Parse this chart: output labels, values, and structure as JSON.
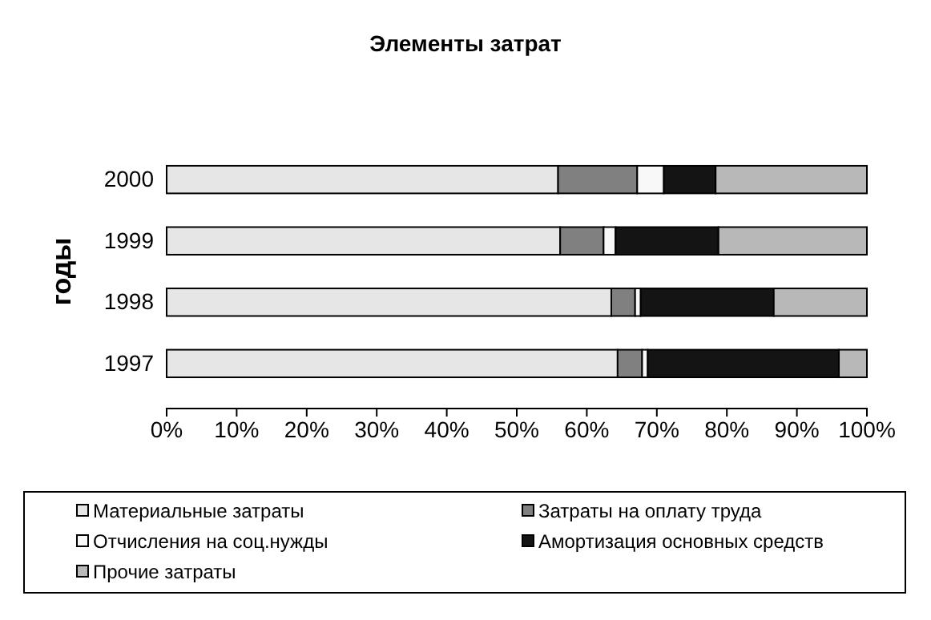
{
  "chart_data": {
    "type": "bar",
    "title": "Элементы затрат",
    "ylabel": "годы",
    "orientation": "horizontal",
    "stacked": true,
    "categories": [
      "2000",
      "1999",
      "1998",
      "1997"
    ],
    "series": [
      {
        "name": "Материальные затраты",
        "color": "#e6e6e6",
        "values": [
          55.9,
          56.2,
          63.5,
          64.4
        ]
      },
      {
        "name": "Затраты на оплату труда",
        "color": "#808080",
        "values": [
          11.3,
          6.2,
          3.4,
          3.5
        ]
      },
      {
        "name": "Отчисления на соц.нужды",
        "color": "#f8f8f8",
        "values": [
          3.8,
          1.7,
          0.8,
          0.8
        ]
      },
      {
        "name": "Амортизация основных средств",
        "color": "#141414",
        "values": [
          7.4,
          14.7,
          19.0,
          27.3
        ]
      },
      {
        "name": "Прочие затраты",
        "color": "#b8b8b8",
        "values": [
          21.6,
          21.2,
          13.3,
          4.0
        ]
      }
    ],
    "xlim": [
      0,
      100
    ],
    "xticks": [
      {
        "value": 0,
        "label": "0%"
      },
      {
        "value": 10,
        "label": "10%"
      },
      {
        "value": 20,
        "label": "20%"
      },
      {
        "value": 30,
        "label": "30%"
      },
      {
        "value": 40,
        "label": "40%"
      },
      {
        "value": 50,
        "label": "50%"
      },
      {
        "value": 60,
        "label": "60%"
      },
      {
        "value": 70,
        "label": "70%"
      },
      {
        "value": 80,
        "label": "80%"
      },
      {
        "value": 90,
        "label": "90%"
      },
      {
        "value": 100,
        "label": "100%"
      }
    ],
    "legend": "bottom",
    "grid": false
  }
}
